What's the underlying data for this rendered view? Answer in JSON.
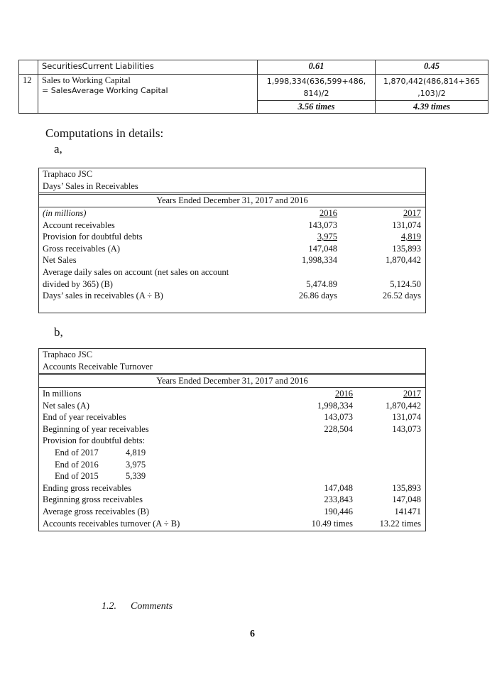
{
  "top_table": {
    "row_a": {
      "label": "SecuritiesCurrent Liabilities",
      "v2016": "0.61",
      "v2017": "0.45"
    },
    "row_12": {
      "num": "12",
      "label1": "Sales to Working Capital",
      "label2": "= SalesAverage Working Capital",
      "calc2016": "1,998,334(636,599+486, 814)/2",
      "calc2017": "1,870,442(486,814+365 ,103)/2",
      "v2016": "3.56 times",
      "v2017": "4.39 times"
    }
  },
  "heading": "Computations in details:",
  "section_a": "a,",
  "section_b": "b,",
  "table_a": {
    "company": "Traphaco JSC",
    "title": "Days’ Sales in Receivables",
    "period": "Years Ended December 31, 2017 and 2016",
    "rows": [
      {
        "label": "(in millions)",
        "v2016": "2016",
        "v2017": "2017"
      },
      {
        "label": "Account receivables",
        "v2016": "143,073",
        "v2017": "131,074"
      },
      {
        "label": "Provision for doubtful debts",
        "v2016": "3,975",
        "v2017": "4,819"
      },
      {
        "label": "Gross receivables (A)",
        "v2016": "147,048",
        "v2017": "135,893"
      },
      {
        "label": "Net Sales",
        "v2016": "1,998,334",
        "v2017": "1,870,442"
      },
      {
        "label": "Average daily sales on account (net sales on account",
        "v2016": "",
        "v2017": ""
      },
      {
        "label": "divided by 365) (B)",
        "v2016": "5,474.89",
        "v2017": "5,124.50"
      },
      {
        "label": "Days’ sales in receivables (A ÷ B)",
        "v2016": "26.86 days",
        "v2017": "26.52 days"
      }
    ]
  },
  "table_b": {
    "company": "Traphaco JSC",
    "title": "Accounts Receivable Turnover",
    "period": "Years Ended December 31, 2017 and 2016",
    "rows": [
      {
        "label": "In millions",
        "v2016": "2016",
        "v2017": "2017"
      },
      {
        "label": "Net sales (A)",
        "v2016": "1,998,334",
        "v2017": "1,870,442"
      },
      {
        "label": "End of year receivables",
        "v2016": "143,073",
        "v2017": "131,074"
      },
      {
        "label": "Beginning of year receivables",
        "v2016": "228,504",
        "v2017": "143,073"
      },
      {
        "label": "Provision for doubtful debts:",
        "v2016": "",
        "v2017": ""
      }
    ],
    "provisions": [
      {
        "label": "End of 2017",
        "value": "4,819"
      },
      {
        "label": "End of 2016",
        "value": "3,975"
      },
      {
        "label": "End of 2015",
        "value": "5,339"
      }
    ],
    "rows2": [
      {
        "label": "Ending gross receivables",
        "v2016": "147,048",
        "v2017": "135,893"
      },
      {
        "label": "Beginning gross receivables",
        "v2016": "233,843",
        "v2017": "147,048"
      },
      {
        "label": "Average gross receivables (B)",
        "v2016": "190,446",
        "v2017": "141471"
      },
      {
        "label": "Accounts receivables turnover (A ÷ B)",
        "v2016": "10.49 times",
        "v2017": "13.22 times"
      }
    ]
  },
  "comments_heading": {
    "number": "1.2.",
    "title": "Comments"
  },
  "page_number": "6"
}
